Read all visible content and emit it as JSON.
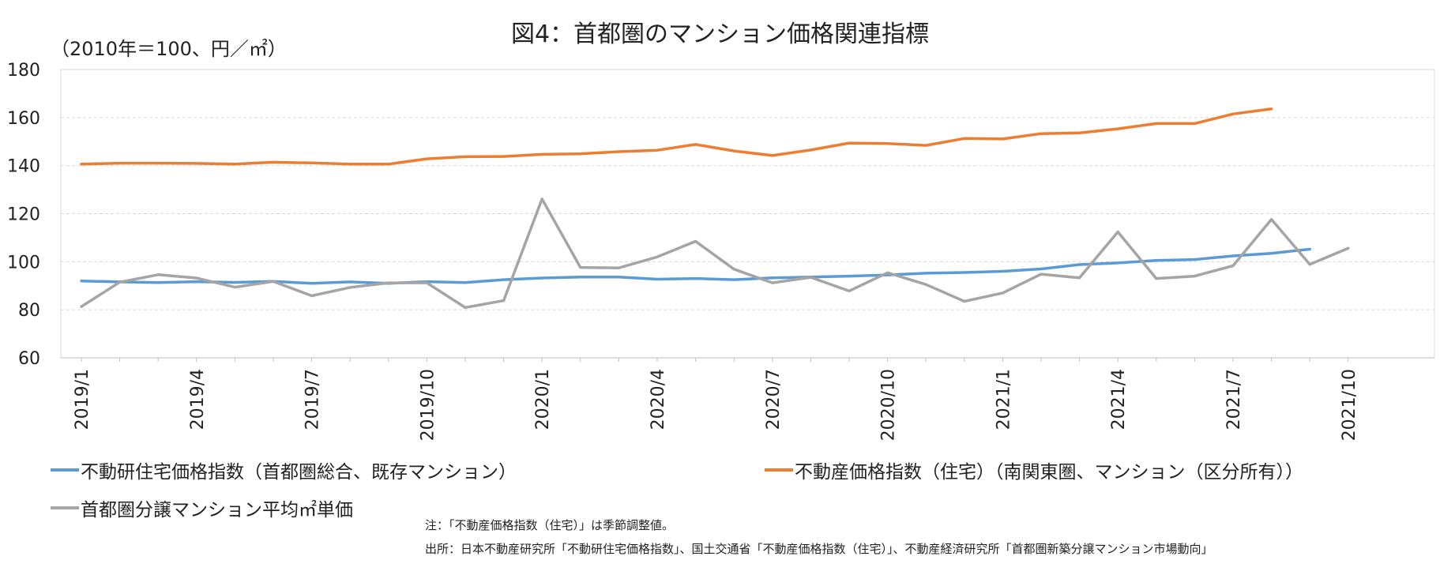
{
  "chart_data": {
    "type": "line",
    "title": "図4：首都圏のマンション価格関連指標",
    "ylabel": "（2010年＝100、円／㎡）",
    "ylim": [
      60,
      180
    ],
    "yticks": [
      60,
      80,
      100,
      120,
      140,
      160,
      180
    ],
    "grid": true,
    "legend_placement": "bottom",
    "x": [
      "2019/1",
      "2019/2",
      "2019/3",
      "2019/4",
      "2019/5",
      "2019/6",
      "2019/7",
      "2019/8",
      "2019/9",
      "2019/10",
      "2019/11",
      "2019/12",
      "2020/1",
      "2020/2",
      "2020/3",
      "2020/4",
      "2020/5",
      "2020/6",
      "2020/7",
      "2020/8",
      "2020/9",
      "2020/10",
      "2020/11",
      "2020/12",
      "2021/1",
      "2021/2",
      "2021/3",
      "2021/4",
      "2021/5",
      "2021/6",
      "2021/7",
      "2021/8",
      "2021/9",
      "2021/10"
    ],
    "xtick_labels": [
      "2019/1",
      "2019/4",
      "2019/7",
      "2019/10",
      "2020/1",
      "2020/4",
      "2020/7",
      "2020/10",
      "2021/1",
      "2021/4",
      "2021/7",
      "2021/10"
    ],
    "xtick_indices": [
      0,
      3,
      6,
      9,
      12,
      15,
      18,
      21,
      24,
      27,
      30,
      33
    ],
    "series": [
      {
        "name": "不動研住宅価格指数（首都圏総合、既存マンション）",
        "color": "#5B9BD5",
        "values": [
          92,
          91.6,
          91.3,
          91.7,
          91.4,
          91.8,
          91,
          91.6,
          91,
          91.7,
          91.3,
          92.5,
          93.2,
          93.6,
          93.6,
          92.7,
          93,
          92.5,
          93.3,
          93.6,
          94,
          94.5,
          95.2,
          95.5,
          96,
          97,
          98.8,
          99.5,
          100.5,
          100.9,
          102.4,
          103.5,
          105.2,
          null
        ]
      },
      {
        "name": "不動産価格指数（住宅）（南関東圏、マンション（区分所有））",
        "color": "#ED7D31",
        "values": [
          140.6,
          141,
          141,
          140.9,
          140.6,
          141.4,
          141.1,
          140.6,
          140.6,
          142.8,
          143.7,
          143.8,
          144.7,
          144.9,
          145.8,
          146.4,
          148.8,
          146.1,
          144.2,
          146.5,
          149.4,
          149.2,
          148.4,
          151.3,
          151.1,
          153.3,
          153.6,
          155.3,
          157.5,
          157.5,
          161.5,
          163.6,
          null,
          null
        ]
      },
      {
        "name": "首都圏分譲マンション平均㎡単価",
        "color": "#A5A5A5",
        "values": [
          81.3,
          91.5,
          94.6,
          93.2,
          89.4,
          91.8,
          85.8,
          89.3,
          91.2,
          91.2,
          80.9,
          83.8,
          126.1,
          97.6,
          97.4,
          102,
          108.5,
          96.9,
          91.2,
          93.5,
          87.8,
          95.4,
          90.5,
          83.5,
          87,
          94.8,
          93.3,
          112.4,
          93,
          94,
          98.3,
          117.6,
          98.9,
          105.6
        ]
      }
    ]
  },
  "notes": {
    "note1": "注：「不動産価格指数（住宅）」は季節調整値。",
    "note2": "出所：日本不動産研究所「不動研住宅価格指数」、国土交通省「不動産価格指数（住宅）」、不動産経済研究所「首都圏新築分譲マンション市場動向」"
  }
}
